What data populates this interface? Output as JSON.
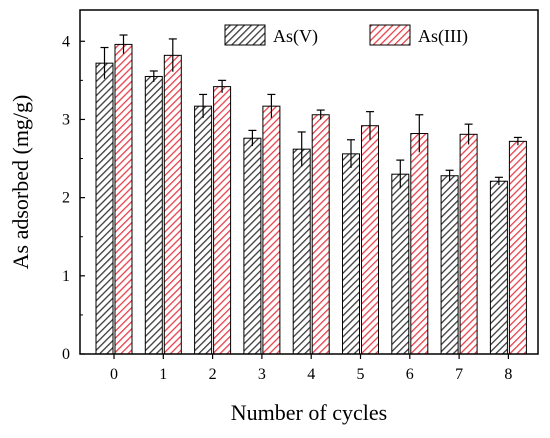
{
  "chart_data": {
    "type": "bar",
    "xlabel": "Number of cycles",
    "ylabel": "As adsorbed (mg/g)",
    "categories": [
      "0",
      "1",
      "2",
      "3",
      "4",
      "5",
      "6",
      "7",
      "8"
    ],
    "ylim": [
      0,
      4.4
    ],
    "yticks": [
      0,
      1,
      2,
      3,
      4
    ],
    "grid": false,
    "legend_position": "top-right",
    "series": [
      {
        "name": "As(V)",
        "color": "#3a3a3a",
        "pattern": "diagonal-hatch",
        "values": [
          3.72,
          3.55,
          3.17,
          2.76,
          2.62,
          2.56,
          2.3,
          2.28,
          2.21
        ],
        "errors": [
          0.2,
          0.07,
          0.15,
          0.1,
          0.22,
          0.18,
          0.18,
          0.07,
          0.05
        ]
      },
      {
        "name": "As(III)",
        "color": "#e8404a",
        "pattern": "diagonal-hatch",
        "values": [
          3.96,
          3.82,
          3.42,
          3.17,
          3.06,
          2.92,
          2.82,
          2.81,
          2.72
        ],
        "errors": [
          0.12,
          0.21,
          0.08,
          0.15,
          0.06,
          0.18,
          0.24,
          0.13,
          0.05
        ]
      }
    ]
  }
}
